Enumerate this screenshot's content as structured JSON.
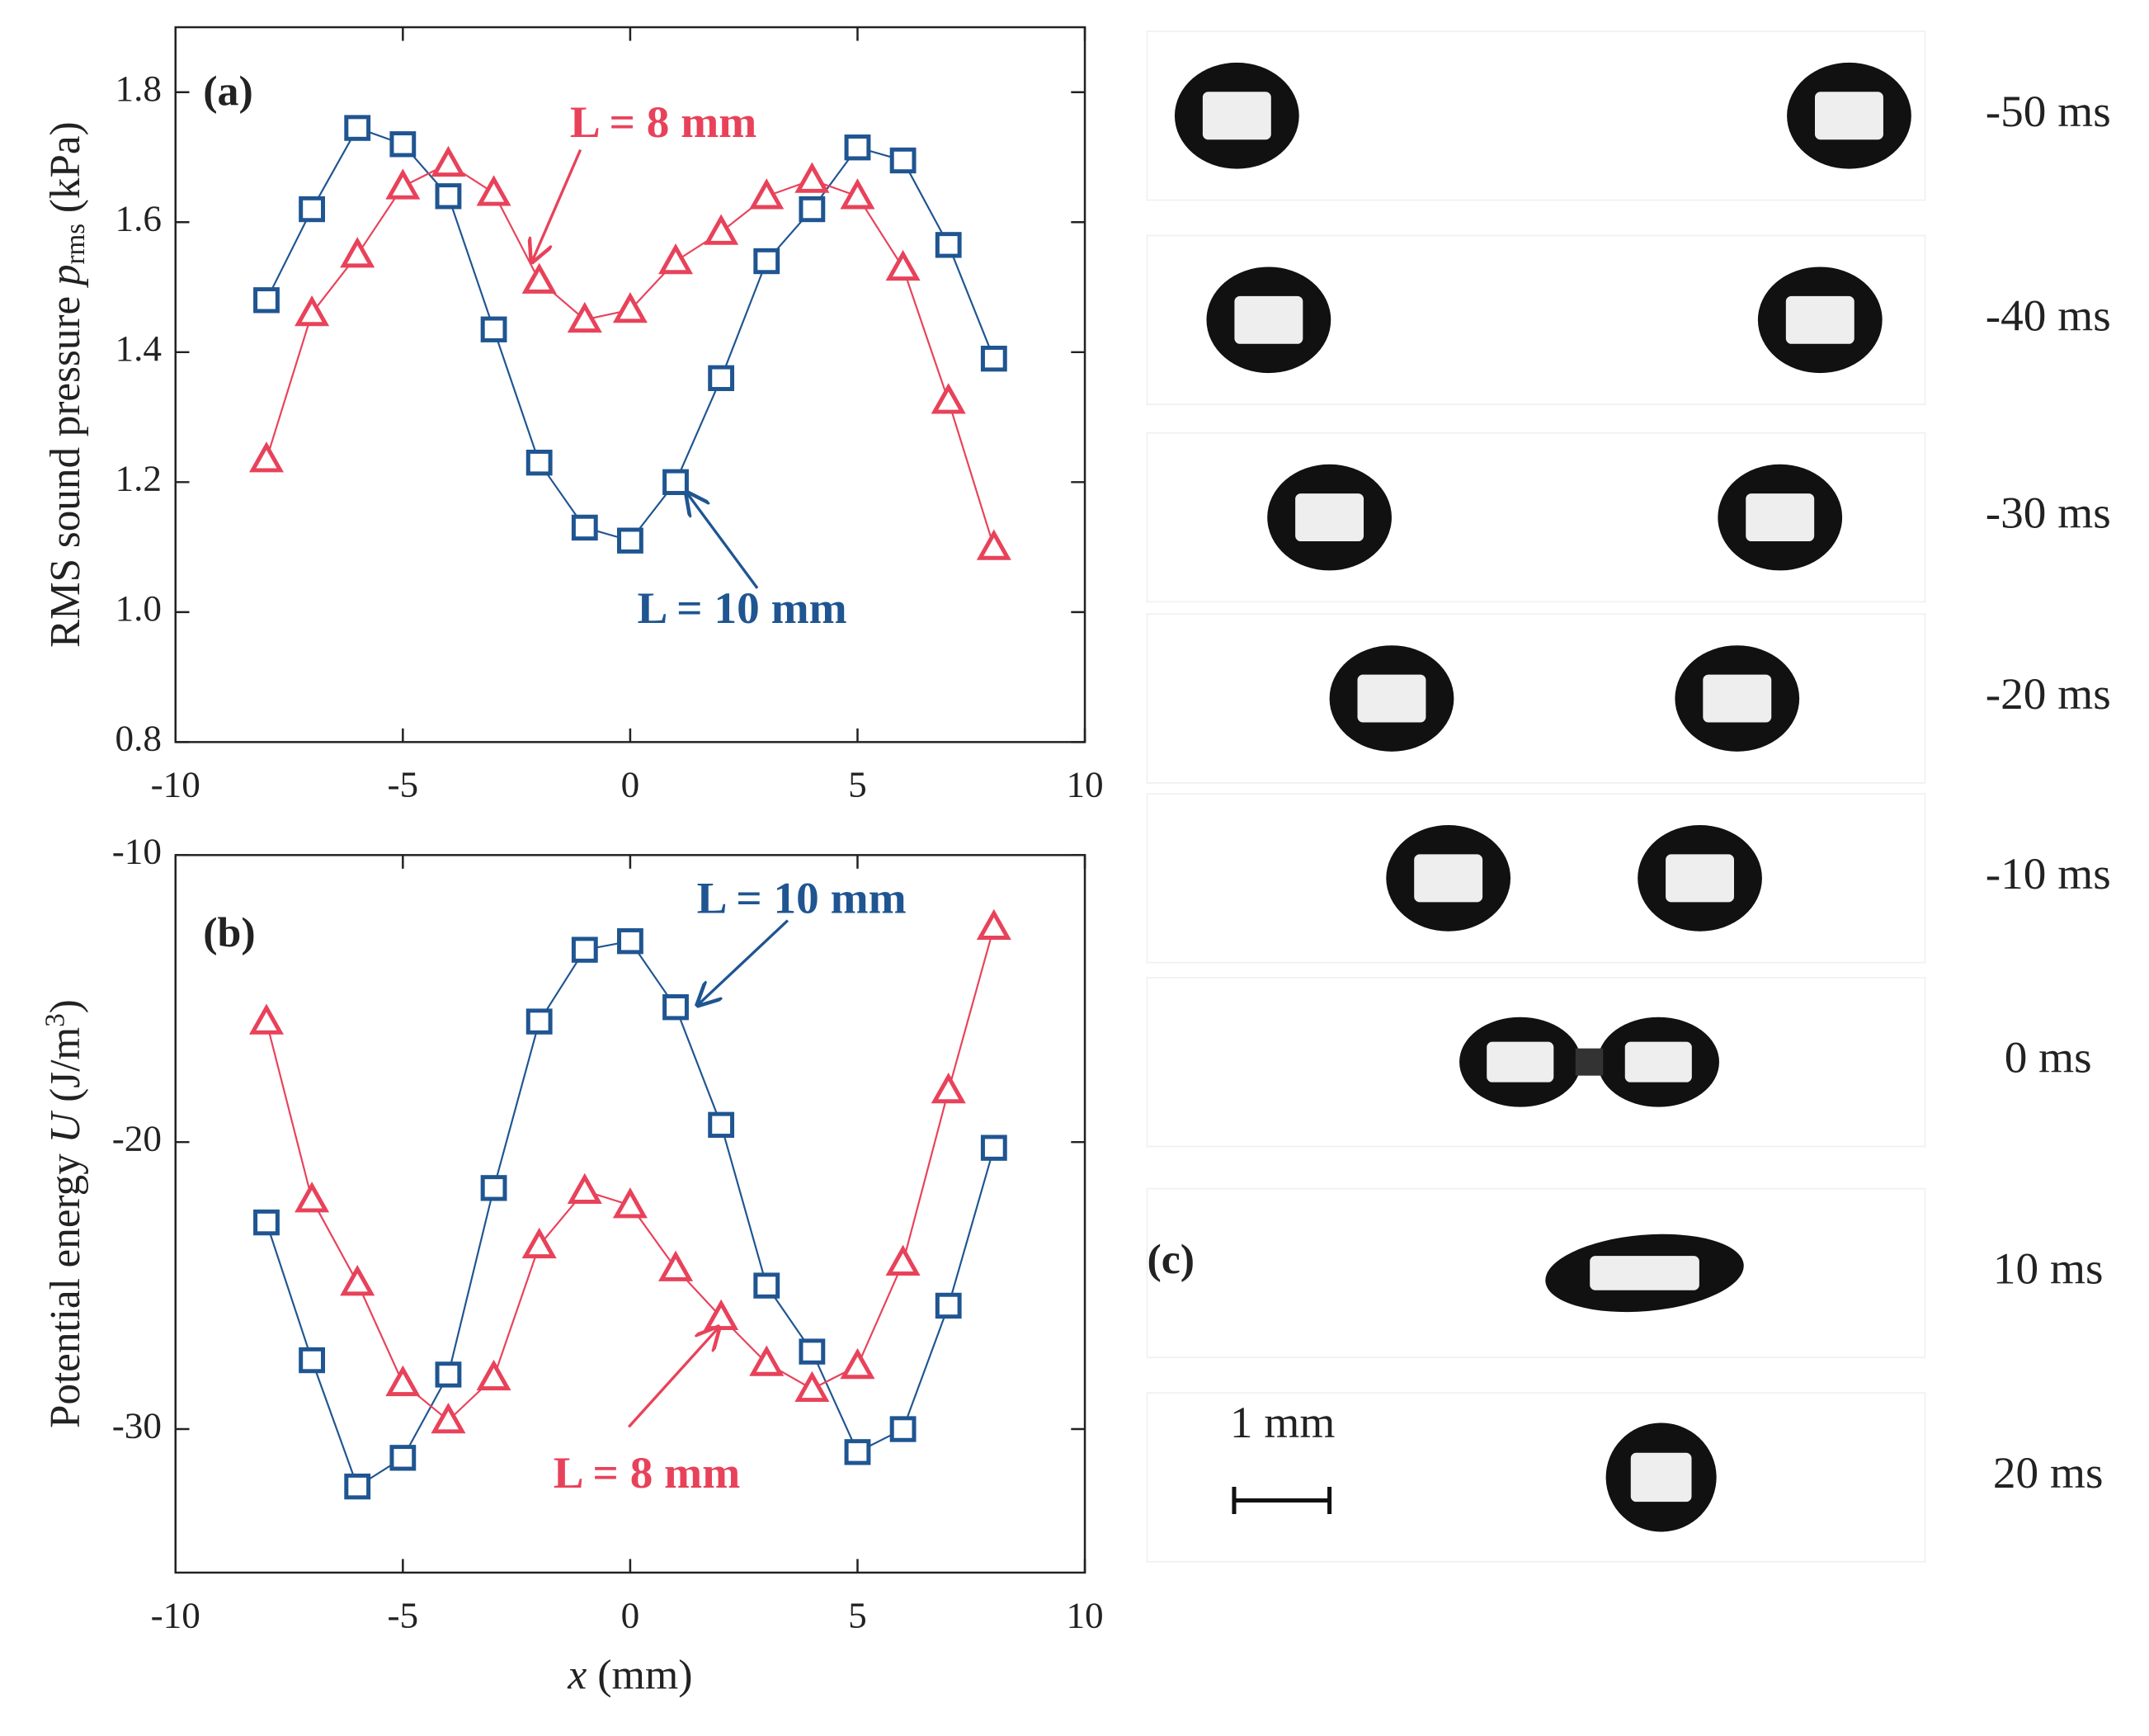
{
  "chart_data": [
    {
      "type": "line",
      "panel_label": "(a)",
      "ylabel": [
        "RMS sound pressure ",
        "p",
        "rms",
        " (kPa)"
      ],
      "x": [
        -8,
        -7,
        -6,
        -5,
        -4,
        -3,
        -2,
        -1,
        0,
        1,
        2,
        3,
        4,
        5,
        6,
        7,
        8
      ],
      "xlim": [
        -10,
        10
      ],
      "xticks": [
        -10,
        -5,
        0,
        5,
        10
      ],
      "ylim": [
        0.8,
        1.9
      ],
      "yticks": [
        {
          "value": 0.8,
          "label": "0.8"
        },
        {
          "value": 1.0,
          "label": "1.0"
        },
        {
          "value": 1.2,
          "label": "1.2"
        },
        {
          "value": 1.4,
          "label": "1.4"
        },
        {
          "value": 1.6,
          "label": "1.6"
        },
        {
          "value": 1.8,
          "label": "1.8"
        }
      ],
      "series": [
        {
          "name": "L = 10 mm",
          "color": "#1f5591",
          "marker": "square",
          "values": [
            1.48,
            1.62,
            1.745,
            1.72,
            1.64,
            1.435,
            1.23,
            1.13,
            1.11,
            1.2,
            1.36,
            1.54,
            1.62,
            1.715,
            1.695,
            1.565,
            1.39
          ]
        },
        {
          "name": "L = 8 mm",
          "color": "#e8425a",
          "marker": "triangle",
          "values": [
            1.235,
            1.46,
            1.55,
            1.655,
            1.69,
            1.645,
            1.51,
            1.45,
            1.465,
            1.54,
            1.585,
            1.64,
            1.665,
            1.64,
            1.53,
            1.325,
            1.1
          ]
        }
      ]
    },
    {
      "type": "line",
      "panel_label": "(b)",
      "ylabel": [
        "Potential energy ",
        "U",
        " (J/m",
        "3",
        ")"
      ],
      "xlabel": [
        "x",
        " (mm)"
      ],
      "x": [
        -8,
        -7,
        -6,
        -5,
        -4,
        -3,
        -2,
        -1,
        0,
        1,
        2,
        3,
        4,
        5,
        6,
        7,
        8
      ],
      "xlim": [
        -10,
        10
      ],
      "xticks": [
        -10,
        -5,
        0,
        5,
        10
      ],
      "ylim": [
        -35,
        -10
      ],
      "yticks": [
        -10,
        -20,
        -30
      ],
      "series": [
        {
          "name": "L = 10 mm",
          "color": "#1f5591",
          "marker": "square",
          "values": [
            -22.8,
            -27.6,
            -32.0,
            -31.0,
            -28.1,
            -21.6,
            -15.8,
            -13.3,
            -13.0,
            -15.3,
            -19.4,
            -25.0,
            -27.3,
            -30.8,
            -30.0,
            -25.7,
            -20.2
          ]
        },
        {
          "name": "L = 8 mm",
          "color": "#e8425a",
          "marker": "triangle",
          "values": [
            -15.8,
            -22.0,
            -24.9,
            -28.4,
            -29.7,
            -28.2,
            -23.6,
            -21.7,
            -22.2,
            -24.4,
            -26.1,
            -27.7,
            -28.6,
            -27.8,
            -24.2,
            -18.2,
            -12.5
          ]
        }
      ]
    }
  ],
  "image_panel": {
    "label": "(c)",
    "scale_bar": "1 mm",
    "times": [
      "-50 ms",
      "-40 ms",
      "-30 ms",
      "-20 ms",
      "-10 ms",
      "0 ms",
      "10 ms",
      "20 ms"
    ]
  }
}
